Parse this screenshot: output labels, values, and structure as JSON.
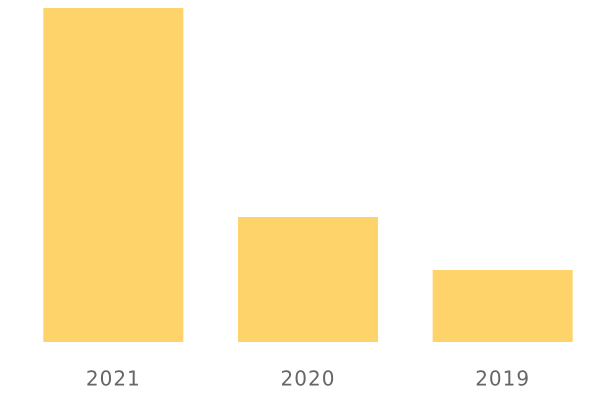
{
  "chart_data": {
    "type": "bar",
    "categories": [
      "2021",
      "2020",
      "2019"
    ],
    "values": [
      334,
      125,
      72
    ],
    "color": "#fed46a",
    "ylim": [
      0,
      334
    ]
  }
}
